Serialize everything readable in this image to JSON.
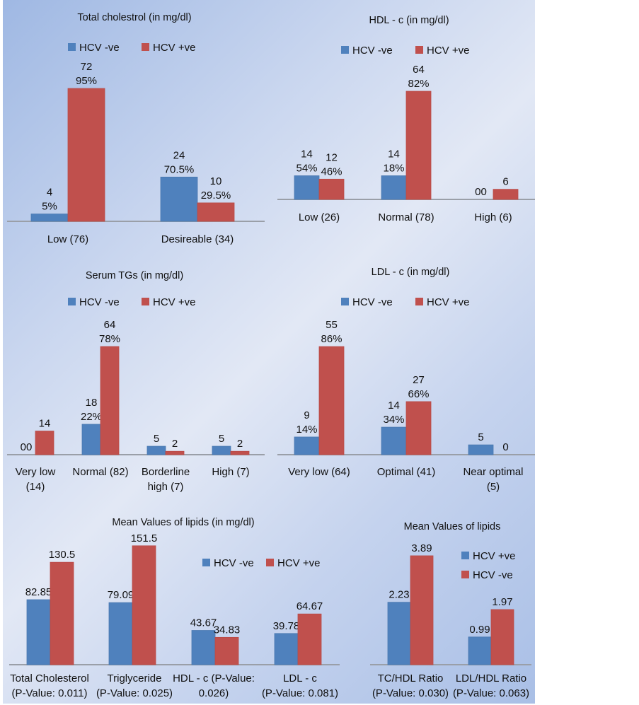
{
  "colors": {
    "series_a": "#4f81bd",
    "series_b": "#c0504d"
  },
  "chart_data": [
    {
      "id": "total-cholesterol",
      "type": "bar",
      "title": "Total cholestrol (in mg/dl)",
      "categories": [
        "Low (76)",
        "Desireable (34)"
      ],
      "series": [
        {
          "name": "HCV -ve",
          "color": "#4f81bd",
          "values": [
            4,
            24
          ],
          "labels": [
            [
              "4",
              "5%"
            ],
            [
              "24",
              "70.5%"
            ]
          ]
        },
        {
          "name": "HCV +ve",
          "color": "#c0504d",
          "values": [
            72,
            10
          ],
          "labels": [
            [
              "72",
              "95%"
            ],
            [
              "10",
              "29.5%"
            ]
          ]
        }
      ],
      "legend": "top-center",
      "grid": false
    },
    {
      "id": "hdl-c",
      "type": "bar",
      "title": "HDL - c (in mg/dl)",
      "categories": [
        "Low (26)",
        "Normal (78)",
        "High (6)"
      ],
      "series": [
        {
          "name": "HCV -ve",
          "color": "#4f81bd",
          "values": [
            14,
            14,
            0
          ],
          "labels": [
            [
              "14",
              "54%"
            ],
            [
              "14",
              "18%"
            ],
            [
              "00"
            ]
          ]
        },
        {
          "name": "HCV +ve",
          "color": "#c0504d",
          "values": [
            12,
            64,
            6
          ],
          "labels": [
            [
              "12",
              "46%"
            ],
            [
              "64",
              "82%"
            ],
            [
              "6"
            ]
          ]
        }
      ],
      "legend": "top-center",
      "grid": false
    },
    {
      "id": "serum-tgs",
      "type": "bar",
      "title": "Serum TGs (in mg/dl)",
      "categories": [
        "Very low (14)",
        "Normal (82)",
        "Borderline high (7)",
        "High (7)"
      ],
      "category_lines": [
        [
          "Very low",
          "(14)"
        ],
        [
          "Normal (82)"
        ],
        [
          "Borderline",
          "high (7)"
        ],
        [
          "High (7)"
        ]
      ],
      "series": [
        {
          "name": "HCV -ve",
          "color": "#4f81bd",
          "values": [
            0,
            18,
            5,
            5
          ],
          "labels": [
            [
              "00"
            ],
            [
              "18",
              "22%"
            ],
            [
              "5"
            ],
            [
              "5"
            ]
          ]
        },
        {
          "name": "HCV +ve",
          "color": "#c0504d",
          "values": [
            14,
            64,
            2,
            2
          ],
          "labels": [
            [
              "14"
            ],
            [
              "64",
              "78%"
            ],
            [
              "2"
            ],
            [
              "2"
            ]
          ]
        }
      ],
      "legend": "top-center",
      "grid": false
    },
    {
      "id": "ldl-c",
      "type": "bar",
      "title": "LDL - c (in mg/dl)",
      "categories": [
        "Very low (64)",
        "Optimal (41)",
        "Near optimal (5)"
      ],
      "category_lines": [
        [
          "Very low (64)"
        ],
        [
          "Optimal (41)"
        ],
        [
          "Near optimal",
          "(5)"
        ]
      ],
      "series": [
        {
          "name": "HCV -ve",
          "color": "#4f81bd",
          "values": [
            9,
            14,
            5
          ],
          "labels": [
            [
              "9",
              "14%"
            ],
            [
              "14",
              "34%"
            ],
            [
              "5"
            ]
          ]
        },
        {
          "name": "HCV +ve",
          "color": "#c0504d",
          "values": [
            55,
            27,
            0
          ],
          "labels": [
            [
              "55",
              "86%"
            ],
            [
              "27",
              "66%"
            ],
            [
              "0"
            ]
          ]
        }
      ],
      "legend": "top-center",
      "grid": false
    },
    {
      "id": "mean-lipids",
      "type": "bar",
      "title": "Mean Values of lipids (in mg/dl)",
      "categories": [
        "Total Cholesterol (P-Value: 0.011)",
        "Triglyceride (P-Value: 0.025)",
        "HDL - c (P-Value: 0.026)",
        "LDL - c (P-Value: 0.081)"
      ],
      "category_lines": [
        [
          "Total Cholesterol",
          "(P-Value: 0.011)"
        ],
        [
          "Triglyceride",
          "(P-Value: 0.025)"
        ],
        [
          "HDL - c (P-Value:",
          "0.026)"
        ],
        [
          "LDL - c",
          "(P-Value: 0.081)"
        ]
      ],
      "series": [
        {
          "name": "HCV -ve",
          "color": "#4f81bd",
          "values": [
            82.85,
            79.09,
            43.67,
            39.78
          ],
          "labels": [
            [
              "82.85"
            ],
            [
              "79.09"
            ],
            [
              "43.67"
            ],
            [
              "39.78"
            ]
          ]
        },
        {
          "name": "HCV +ve",
          "color": "#c0504d",
          "values": [
            130.5,
            151.5,
            34.83,
            64.67
          ],
          "labels": [
            [
              "130.5"
            ],
            [
              "151.5"
            ],
            [
              "34.83"
            ],
            [
              "64.67"
            ]
          ]
        }
      ],
      "legend": "right",
      "grid": false
    },
    {
      "id": "mean-ratios",
      "type": "bar",
      "title": "Mean Values of lipids",
      "categories": [
        "TC/HDL Ratio (P-Value: 0.030)",
        "LDL/HDL Ratio (P-Value: 0.063)"
      ],
      "category_lines": [
        [
          "TC/HDL Ratio",
          "(P-Value: 0.030)"
        ],
        [
          "LDL/HDL Ratio",
          "(P-Value: 0.063)"
        ]
      ],
      "series": [
        {
          "name": "HCV +ve",
          "color": "#4f81bd",
          "values": [
            2.23,
            0.99
          ],
          "labels": [
            [
              "2.23"
            ],
            [
              "0.99"
            ]
          ]
        },
        {
          "name": "HCV -ve",
          "color": "#c0504d",
          "values": [
            3.89,
            1.97
          ],
          "labels": [
            [
              "3.89"
            ],
            [
              "1.97"
            ]
          ]
        }
      ],
      "legend": "right",
      "grid": false
    }
  ]
}
